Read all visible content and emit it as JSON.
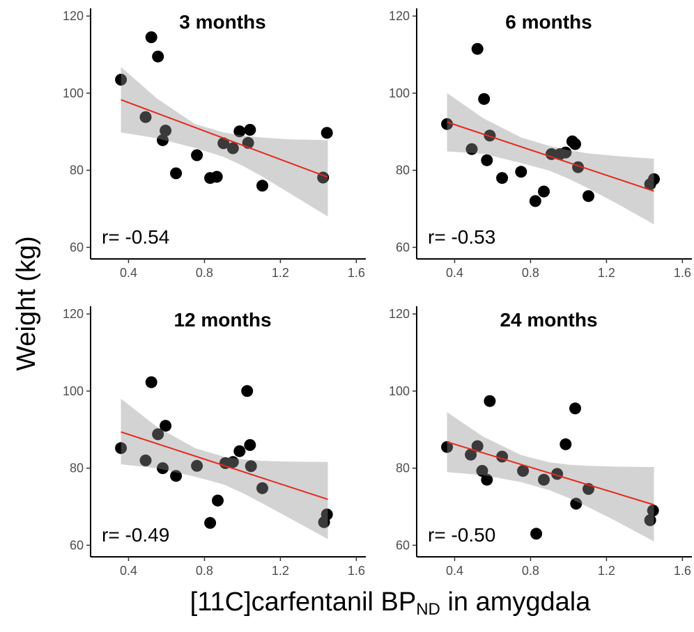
{
  "chart_data": {
    "type": "scatter",
    "shared": {
      "xlabel": "[11C]carfentanil BP",
      "xlabel_sub": "ND",
      "xlabel_suffix": " in amygdala",
      "ylabel": "Weight (kg)",
      "xlim": [
        0.2,
        1.65
      ],
      "ylim": [
        57,
        122
      ],
      "xticks": [
        0.4,
        0.8,
        1.2,
        1.6
      ],
      "xtick_labels": [
        "0.4",
        "0.8",
        "1.2",
        "1.6"
      ],
      "yticks": [
        60,
        80,
        100,
        120
      ],
      "ytick_labels": [
        "60",
        "80",
        "100",
        "120"
      ],
      "grid": false,
      "point_color": "#000000",
      "fit_color": "#e8281e",
      "band_color": "#d0d0d0"
    },
    "panels": [
      {
        "title": "3 months",
        "r_label": "r= -0.54",
        "points": [
          [
            0.36,
            103.5
          ],
          [
            0.49,
            93.8
          ],
          [
            0.52,
            114.5
          ],
          [
            0.555,
            109.5
          ],
          [
            0.58,
            87.8
          ],
          [
            0.595,
            90.3
          ],
          [
            0.65,
            79.2
          ],
          [
            0.76,
            83.9
          ],
          [
            0.83,
            78.0
          ],
          [
            0.865,
            78.3
          ],
          [
            0.9,
            87.0
          ],
          [
            0.95,
            85.7
          ],
          [
            0.985,
            90.1
          ],
          [
            1.03,
            87.1
          ],
          [
            1.04,
            90.5
          ],
          [
            1.105,
            76.0
          ],
          [
            1.425,
            78.1
          ],
          [
            1.445,
            89.7
          ]
        ],
        "fit": {
          "x": [
            0.36,
            1.45
          ],
          "y": [
            98.3,
            78.2
          ]
        },
        "band": {
          "x": [
            0.36,
            0.55,
            0.75,
            0.9,
            1.0,
            1.1,
            1.25,
            1.45
          ],
          "upper": [
            106.8,
            98.6,
            92.0,
            89.8,
            89.0,
            88.5,
            88.0,
            87.8
          ],
          "lower": [
            89.8,
            88.3,
            85.8,
            83.5,
            81.2,
            78.5,
            74.0,
            68.0
          ]
        }
      },
      {
        "title": "6 months",
        "r_label": "r= -0.53",
        "points": [
          [
            0.36,
            92.0
          ],
          [
            0.49,
            85.5
          ],
          [
            0.52,
            111.5
          ],
          [
            0.555,
            98.5
          ],
          [
            0.57,
            82.6
          ],
          [
            0.585,
            89.0
          ],
          [
            0.65,
            78.0
          ],
          [
            0.75,
            79.6
          ],
          [
            0.825,
            72.0
          ],
          [
            0.87,
            74.5
          ],
          [
            0.91,
            84.2
          ],
          [
            0.955,
            84.2
          ],
          [
            0.985,
            84.6
          ],
          [
            1.02,
            87.5
          ],
          [
            1.035,
            86.8
          ],
          [
            1.05,
            80.8
          ],
          [
            1.105,
            73.3
          ],
          [
            1.43,
            76.4
          ],
          [
            1.45,
            77.7
          ]
        ],
        "fit": {
          "x": [
            0.36,
            1.45
          ],
          "y": [
            92.5,
            74.6
          ]
        },
        "band": {
          "x": [
            0.36,
            0.55,
            0.75,
            0.9,
            1.0,
            1.1,
            1.25,
            1.45
          ],
          "upper": [
            100.0,
            93.5,
            88.5,
            86.3,
            85.2,
            84.4,
            83.7,
            83.0
          ],
          "lower": [
            84.9,
            84.3,
            81.9,
            79.9,
            77.8,
            75.4,
            71.5,
            66.0
          ]
        }
      },
      {
        "title": "12 months",
        "r_label": "r= -0.49",
        "points": [
          [
            0.36,
            85.2
          ],
          [
            0.49,
            82.0
          ],
          [
            0.52,
            102.3
          ],
          [
            0.555,
            88.8
          ],
          [
            0.58,
            80.0
          ],
          [
            0.595,
            91.0
          ],
          [
            0.65,
            78.0
          ],
          [
            0.76,
            80.6
          ],
          [
            0.83,
            65.8
          ],
          [
            0.87,
            71.6
          ],
          [
            0.91,
            81.3
          ],
          [
            0.95,
            81.6
          ],
          [
            0.985,
            84.4
          ],
          [
            1.025,
            100.0
          ],
          [
            1.04,
            86.0
          ],
          [
            1.045,
            80.5
          ],
          [
            1.105,
            74.8
          ],
          [
            1.43,
            66.0
          ],
          [
            1.445,
            68.0
          ]
        ],
        "fit": {
          "x": [
            0.36,
            1.45
          ],
          "y": [
            89.4,
            71.9
          ]
        },
        "band": {
          "x": [
            0.36,
            0.55,
            0.75,
            0.9,
            1.0,
            1.1,
            1.25,
            1.45
          ],
          "upper": [
            98.0,
            90.7,
            85.2,
            83.0,
            82.3,
            81.9,
            81.7,
            81.6
          ],
          "lower": [
            81.0,
            80.0,
            77.8,
            75.8,
            73.6,
            71.0,
            67.0,
            61.6
          ]
        }
      },
      {
        "title": "24 months",
        "r_label": "r= -0.50",
        "points": [
          [
            0.36,
            85.5
          ],
          [
            0.485,
            83.5
          ],
          [
            0.52,
            85.7
          ],
          [
            0.545,
            79.3
          ],
          [
            0.57,
            77.0
          ],
          [
            0.585,
            97.4
          ],
          [
            0.65,
            83.0
          ],
          [
            0.76,
            79.3
          ],
          [
            0.83,
            63.0
          ],
          [
            0.87,
            77.0
          ],
          [
            0.94,
            78.5
          ],
          [
            0.985,
            86.2
          ],
          [
            1.035,
            95.5
          ],
          [
            1.04,
            70.8
          ],
          [
            1.105,
            74.6
          ],
          [
            1.43,
            66.5
          ],
          [
            1.445,
            69.0
          ]
        ],
        "fit": {
          "x": [
            0.36,
            1.45
          ],
          "y": [
            86.8,
            70.5
          ]
        },
        "band": {
          "x": [
            0.36,
            0.55,
            0.75,
            0.9,
            1.0,
            1.1,
            1.25,
            1.45
          ],
          "upper": [
            94.5,
            88.2,
            83.4,
            81.5,
            80.9,
            80.6,
            80.4,
            80.3
          ],
          "lower": [
            79.0,
            78.2,
            76.4,
            74.3,
            72.3,
            70.0,
            66.3,
            61.0
          ]
        }
      }
    ]
  }
}
